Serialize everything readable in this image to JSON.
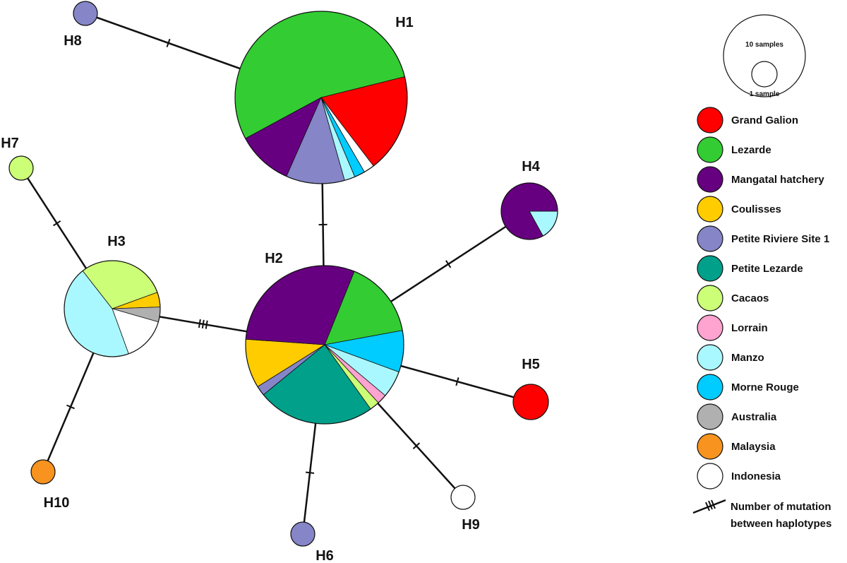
{
  "populations": [
    {
      "id": "grand-galion",
      "name": "Grand Galion",
      "color": "#ff0000"
    },
    {
      "id": "lezarde",
      "name": "Lezarde",
      "color": "#33cc33"
    },
    {
      "id": "mangatal-hatchery",
      "name": "Mangatal hatchery",
      "color": "#660080"
    },
    {
      "id": "coulisses",
      "name": "Coulisses",
      "color": "#ffcc00"
    },
    {
      "id": "petite-riviere-site-1",
      "name": "Petite Riviere Site 1",
      "color": "#8585c8"
    },
    {
      "id": "petite-lezarde",
      "name": "Petite Lezarde",
      "color": "#00a08a"
    },
    {
      "id": "cacaos",
      "name": "Cacaos",
      "color": "#ccff77"
    },
    {
      "id": "lorrain",
      "name": "Lorrain",
      "color": "#ffa3d1"
    },
    {
      "id": "manzo",
      "name": "Manzo",
      "color": "#aaf8ff"
    },
    {
      "id": "morne-rouge",
      "name": "Morne Rouge",
      "color": "#00ccff"
    },
    {
      "id": "australia",
      "name": "Australia",
      "color": "#b0b0b0"
    },
    {
      "id": "malaysia",
      "name": "Malaysia",
      "color": "#f7931e"
    },
    {
      "id": "indonesia",
      "name": "Indonesia",
      "color": "#ffffff"
    }
  ],
  "haplotypes": [
    {
      "label": "H1",
      "composition": [
        {
          "pop": "grand-galion",
          "fraction": 0.185
        },
        {
          "pop": "indonesia",
          "fraction": 0.02
        },
        {
          "pop": "morne-rouge",
          "fraction": 0.02
        },
        {
          "pop": "manzo",
          "fraction": 0.02
        },
        {
          "pop": "petite-riviere-site-1",
          "fraction": 0.11
        },
        {
          "pop": "mangatal-hatchery",
          "fraction": 0.105
        },
        {
          "pop": "lezarde",
          "fraction": 0.54
        }
      ]
    },
    {
      "label": "H2",
      "composition": [
        {
          "pop": "lezarde",
          "fraction": 0.16
        },
        {
          "pop": "morne-rouge",
          "fraction": 0.085
        },
        {
          "pop": "manzo",
          "fraction": 0.055
        },
        {
          "pop": "lorrain",
          "fraction": 0.02
        },
        {
          "pop": "cacaos",
          "fraction": 0.02
        },
        {
          "pop": "petite-lezarde",
          "fraction": 0.24
        },
        {
          "pop": "petite-riviere-site-1",
          "fraction": 0.02
        },
        {
          "pop": "coulisses",
          "fraction": 0.1
        },
        {
          "pop": "mangatal-hatchery",
          "fraction": 0.3
        }
      ]
    },
    {
      "label": "H3",
      "composition": [
        {
          "pop": "coulisses",
          "fraction": 0.05
        },
        {
          "pop": "australia",
          "fraction": 0.05
        },
        {
          "pop": "indonesia",
          "fraction": 0.15
        },
        {
          "pop": "manzo",
          "fraction": 0.45
        },
        {
          "pop": "cacaos",
          "fraction": 0.3
        }
      ]
    },
    {
      "label": "H4",
      "composition": [
        {
          "pop": "manzo",
          "fraction": 0.17
        },
        {
          "pop": "mangatal-hatchery",
          "fraction": 0.83
        }
      ]
    },
    {
      "label": "H5",
      "composition": [
        {
          "pop": "grand-galion",
          "fraction": 1
        }
      ]
    },
    {
      "label": "H6",
      "composition": [
        {
          "pop": "petite-riviere-site-1",
          "fraction": 1
        }
      ]
    },
    {
      "label": "H7",
      "composition": [
        {
          "pop": "cacaos",
          "fraction": 1
        }
      ]
    },
    {
      "label": "H8",
      "composition": [
        {
          "pop": "petite-riviere-site-1",
          "fraction": 1
        }
      ]
    },
    {
      "label": "H9",
      "composition": [
        {
          "pop": "indonesia",
          "fraction": 1
        }
      ]
    },
    {
      "label": "H10",
      "composition": [
        {
          "pop": "malaysia",
          "fraction": 1
        }
      ]
    }
  ],
  "edges": [
    {
      "from": "H1",
      "to": "H8",
      "mutations": 1
    },
    {
      "from": "H1",
      "to": "H2",
      "mutations": 1
    },
    {
      "from": "H2",
      "to": "H3",
      "mutations": 3
    },
    {
      "from": "H2",
      "to": "H4",
      "mutations": 1
    },
    {
      "from": "H2",
      "to": "H5",
      "mutations": 1
    },
    {
      "from": "H2",
      "to": "H6",
      "mutations": 1
    },
    {
      "from": "H2",
      "to": "H9",
      "mutations": 1
    },
    {
      "from": "H3",
      "to": "H7",
      "mutations": 1
    },
    {
      "from": "H3",
      "to": "H10",
      "mutations": 1
    }
  ],
  "scale": {
    "large_label": "10 samples",
    "small_label": "1 sample"
  },
  "mutation_legend": {
    "line1": "Number of mutation",
    "line2": "between haplotypes"
  }
}
